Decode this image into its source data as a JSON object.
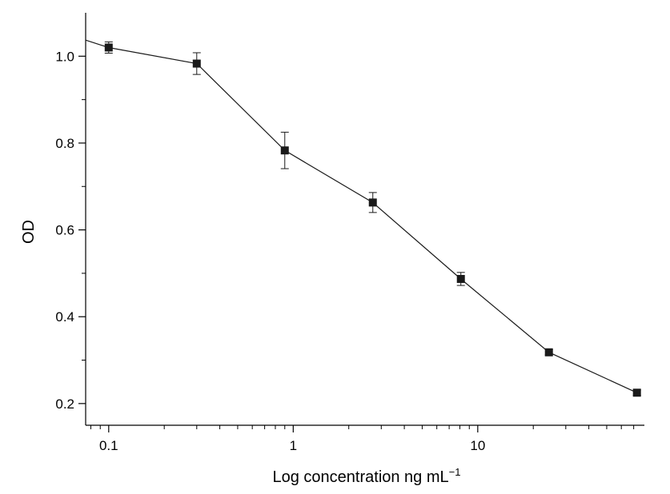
{
  "chart_data": {
    "type": "line",
    "title": "",
    "xlabel": "Log concentration ng mL",
    "xlabel_superscript": "−1",
    "ylabel": "OD",
    "xscale": "log",
    "xlim": [
      0.075,
      80
    ],
    "ylim": [
      0.15,
      1.1
    ],
    "x_ticks": [
      {
        "value": 0.1,
        "label": "0.1"
      },
      {
        "value": 1,
        "label": "1"
      },
      {
        "value": 10,
        "label": "10"
      }
    ],
    "y_ticks": [
      {
        "value": 0.2,
        "label": "0.2"
      },
      {
        "value": 0.4,
        "label": "0.4"
      },
      {
        "value": 0.6,
        "label": "0.6"
      },
      {
        "value": 0.8,
        "label": "0.8"
      },
      {
        "value": 1.0,
        "label": "1.0"
      }
    ],
    "y_minor_ticks": [
      0.3,
      0.5,
      0.7,
      0.9
    ],
    "series": [
      {
        "name": "OD",
        "marker": "square",
        "color": "#1a1a1a",
        "x": [
          0.1,
          0.3,
          0.9,
          2.7,
          8.1,
          24.3,
          72.9
        ],
        "y": [
          1.02,
          0.983,
          0.783,
          0.663,
          0.487,
          0.318,
          0.225
        ],
        "error": [
          0.013,
          0.025,
          0.042,
          0.023,
          0.015,
          0.006,
          0.006
        ]
      }
    ],
    "line_start": {
      "x": 0.075,
      "y": 1.037
    },
    "grid": false,
    "legend": "none"
  }
}
